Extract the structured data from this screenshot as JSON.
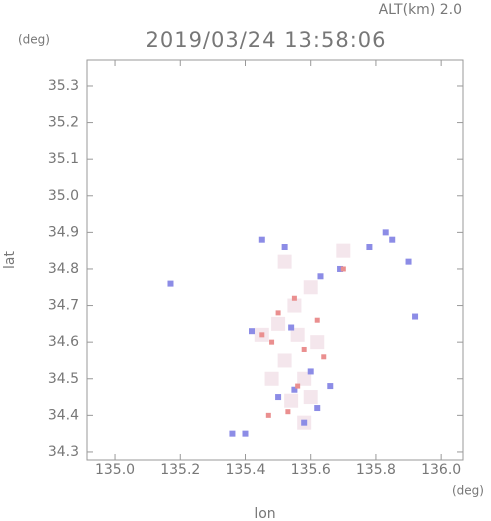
{
  "chart_data": {
    "type": "scatter",
    "title": "2019/03/24 13:58:06",
    "subtitle": "ALT(km) 2.0",
    "y_unit": "(deg)",
    "x_unit": "(deg)",
    "x_label": "lon",
    "y_label": "lat",
    "xlim": [
      134.914,
      136.067
    ],
    "ylim": [
      34.278,
      35.371
    ],
    "xticks": [
      {
        "value": 135.0,
        "label": "135.0"
      },
      135.2,
      135.4,
      135.6,
      135.8,
      {
        "value": 136.0,
        "label": "136.0"
      }
    ],
    "yticks": [
      34.3,
      34.4,
      34.5,
      34.6,
      34.7,
      34.8,
      34.9,
      {
        "value": 35.0,
        "label": "35.0"
      },
      35.1,
      35.2,
      35.3
    ],
    "series": [
      {
        "color": "#f4e6ec",
        "size": 14,
        "x": [
          135.5,
          135.56,
          135.52,
          135.58,
          135.54,
          135.6,
          135.48,
          135.62,
          135.55,
          135.6,
          135.52,
          135.7,
          135.45,
          135.58
        ],
        "values": [
          34.65,
          34.62,
          34.55,
          34.5,
          34.44,
          34.45,
          34.5,
          34.6,
          34.7,
          34.75,
          34.82,
          34.85,
          34.62,
          34.38
        ]
      },
      {
        "color": "#8c8ce6",
        "size": 6,
        "x": [
          135.45,
          135.52,
          135.78,
          135.83,
          135.85,
          135.69,
          135.63,
          135.17,
          135.54,
          135.42,
          135.92,
          135.9,
          135.6,
          135.66,
          135.55,
          135.62,
          135.4,
          135.36,
          135.58,
          135.5
        ],
        "values": [
          34.88,
          34.86,
          34.86,
          34.9,
          34.88,
          34.8,
          34.78,
          34.76,
          34.64,
          34.63,
          34.67,
          34.82,
          34.52,
          34.48,
          34.47,
          34.42,
          34.35,
          34.35,
          34.38,
          34.45
        ]
      },
      {
        "color": "#ea8f8f",
        "size": 5,
        "x": [
          135.55,
          135.62,
          135.5,
          135.7,
          135.48,
          135.58,
          135.56,
          135.47,
          135.53,
          135.64,
          135.45
        ],
        "values": [
          34.72,
          34.66,
          34.68,
          34.8,
          34.6,
          34.58,
          34.48,
          34.4,
          34.41,
          34.56,
          34.62
        ]
      }
    ]
  }
}
